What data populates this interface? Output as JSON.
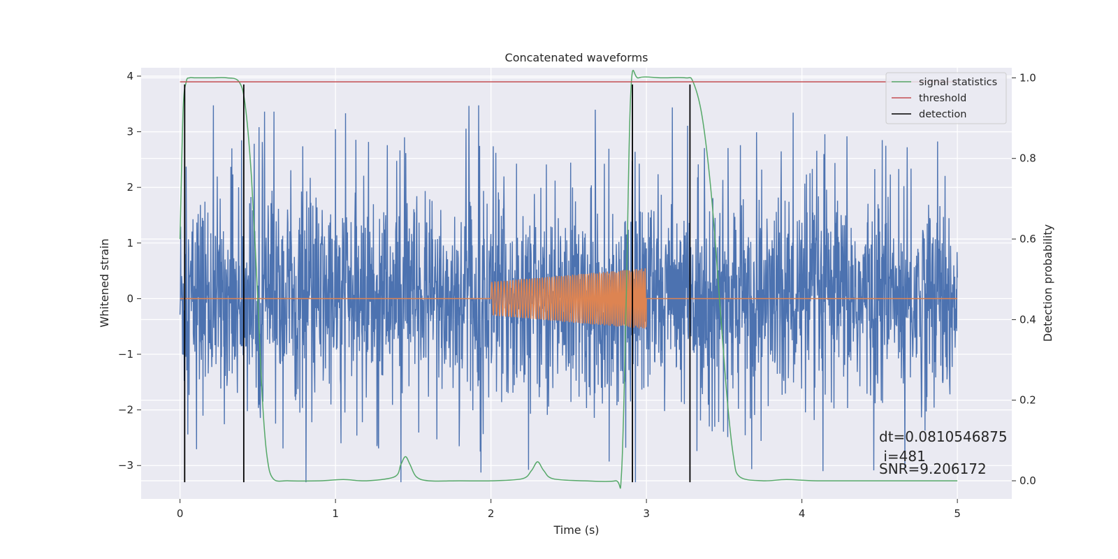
{
  "chart_data": {
    "type": "line",
    "title": "Concatenated waveforms",
    "xlabel": "Time (s)",
    "ylabel_left": "Whitened strain",
    "ylabel_right": "Detection probability",
    "xlim": [
      -0.25,
      5.35
    ],
    "ylim_left": [
      -3.6,
      4.15
    ],
    "ylim_right": [
      -0.045,
      1.025
    ],
    "xticks": [
      "0",
      "1",
      "2",
      "3",
      "4",
      "5"
    ],
    "xtick_values": [
      0,
      1,
      2,
      3,
      4,
      5
    ],
    "yticks_left": [
      "−3",
      "−2",
      "−1",
      "0",
      "1",
      "2",
      "3",
      "4"
    ],
    "ytick_values_left": [
      -3,
      -2,
      -1,
      0,
      1,
      2,
      3,
      4
    ],
    "yticks_right": [
      "0.0",
      "0.2",
      "0.4",
      "0.6",
      "0.8",
      "1.0"
    ],
    "ytick_values_right": [
      0,
      0.2,
      0.4,
      0.6,
      0.8,
      1.0
    ],
    "grid": true,
    "legend_placement": "upper right",
    "colors": {
      "noise": "#4c72b0",
      "injection": "#dd8452",
      "signal_statistics": "#55a868",
      "threshold": "#c44e52",
      "detection": "#000000",
      "background": "#eaeaf2",
      "grid": "#ffffff"
    },
    "series": [
      {
        "name": "signal statistics",
        "axis": "right",
        "x": [
          0,
          0.02,
          0.04,
          0.06,
          0.1,
          0.2,
          0.3,
          0.38,
          0.42,
          0.46,
          0.5,
          0.53,
          0.56,
          0.6,
          0.7,
          0.9,
          1.05,
          1.2,
          1.38,
          1.42,
          1.45,
          1.48,
          1.52,
          1.6,
          1.8,
          2.0,
          2.2,
          2.26,
          2.3,
          2.34,
          2.4,
          2.6,
          2.8,
          2.84,
          2.87,
          2.9,
          2.95,
          3.1,
          3.25,
          3.3,
          3.36,
          3.42,
          3.48,
          3.52,
          3.56,
          3.6,
          3.75,
          3.9,
          4.1,
          4.5,
          5.0
        ],
        "values": [
          0.6,
          0.92,
          0.99,
          1.0,
          1.0,
          1.0,
          1.0,
          0.99,
          0.93,
          0.75,
          0.45,
          0.2,
          0.06,
          0.005,
          0.0,
          0.0,
          0.003,
          0.0,
          0.01,
          0.04,
          0.06,
          0.04,
          0.01,
          0.0,
          0.0,
          0.0,
          0.005,
          0.025,
          0.047,
          0.025,
          0.005,
          0.0,
          0.0,
          0.02,
          0.45,
          0.97,
          1.0,
          1.0,
          1.0,
          0.99,
          0.9,
          0.7,
          0.4,
          0.2,
          0.06,
          0.01,
          0.0,
          0.003,
          0.0,
          0.0,
          0.0
        ]
      },
      {
        "name": "threshold",
        "axis": "right",
        "x": [
          0,
          5
        ],
        "values": [
          0.99,
          0.99
        ]
      },
      {
        "name": "detection",
        "axis": "left",
        "x_positions": [
          0.03,
          0.41,
          2.91,
          3.28
        ],
        "y_range": [
          -3.3,
          3.85
        ]
      }
    ],
    "noise_trace": {
      "axis": "left",
      "x_range": [
        0,
        5
      ],
      "amplitude_typical": 1.5,
      "peak_max": 3.65,
      "peak_min": -3.3
    },
    "injection": {
      "axis": "left",
      "x_range": [
        2,
        3
      ],
      "amplitude_start": 0.3,
      "amplitude_end": 0.55,
      "baseline": 0
    },
    "annotations": [
      "dt=0.0810546875",
      " i=481",
      "SNR=9.206172"
    ]
  }
}
